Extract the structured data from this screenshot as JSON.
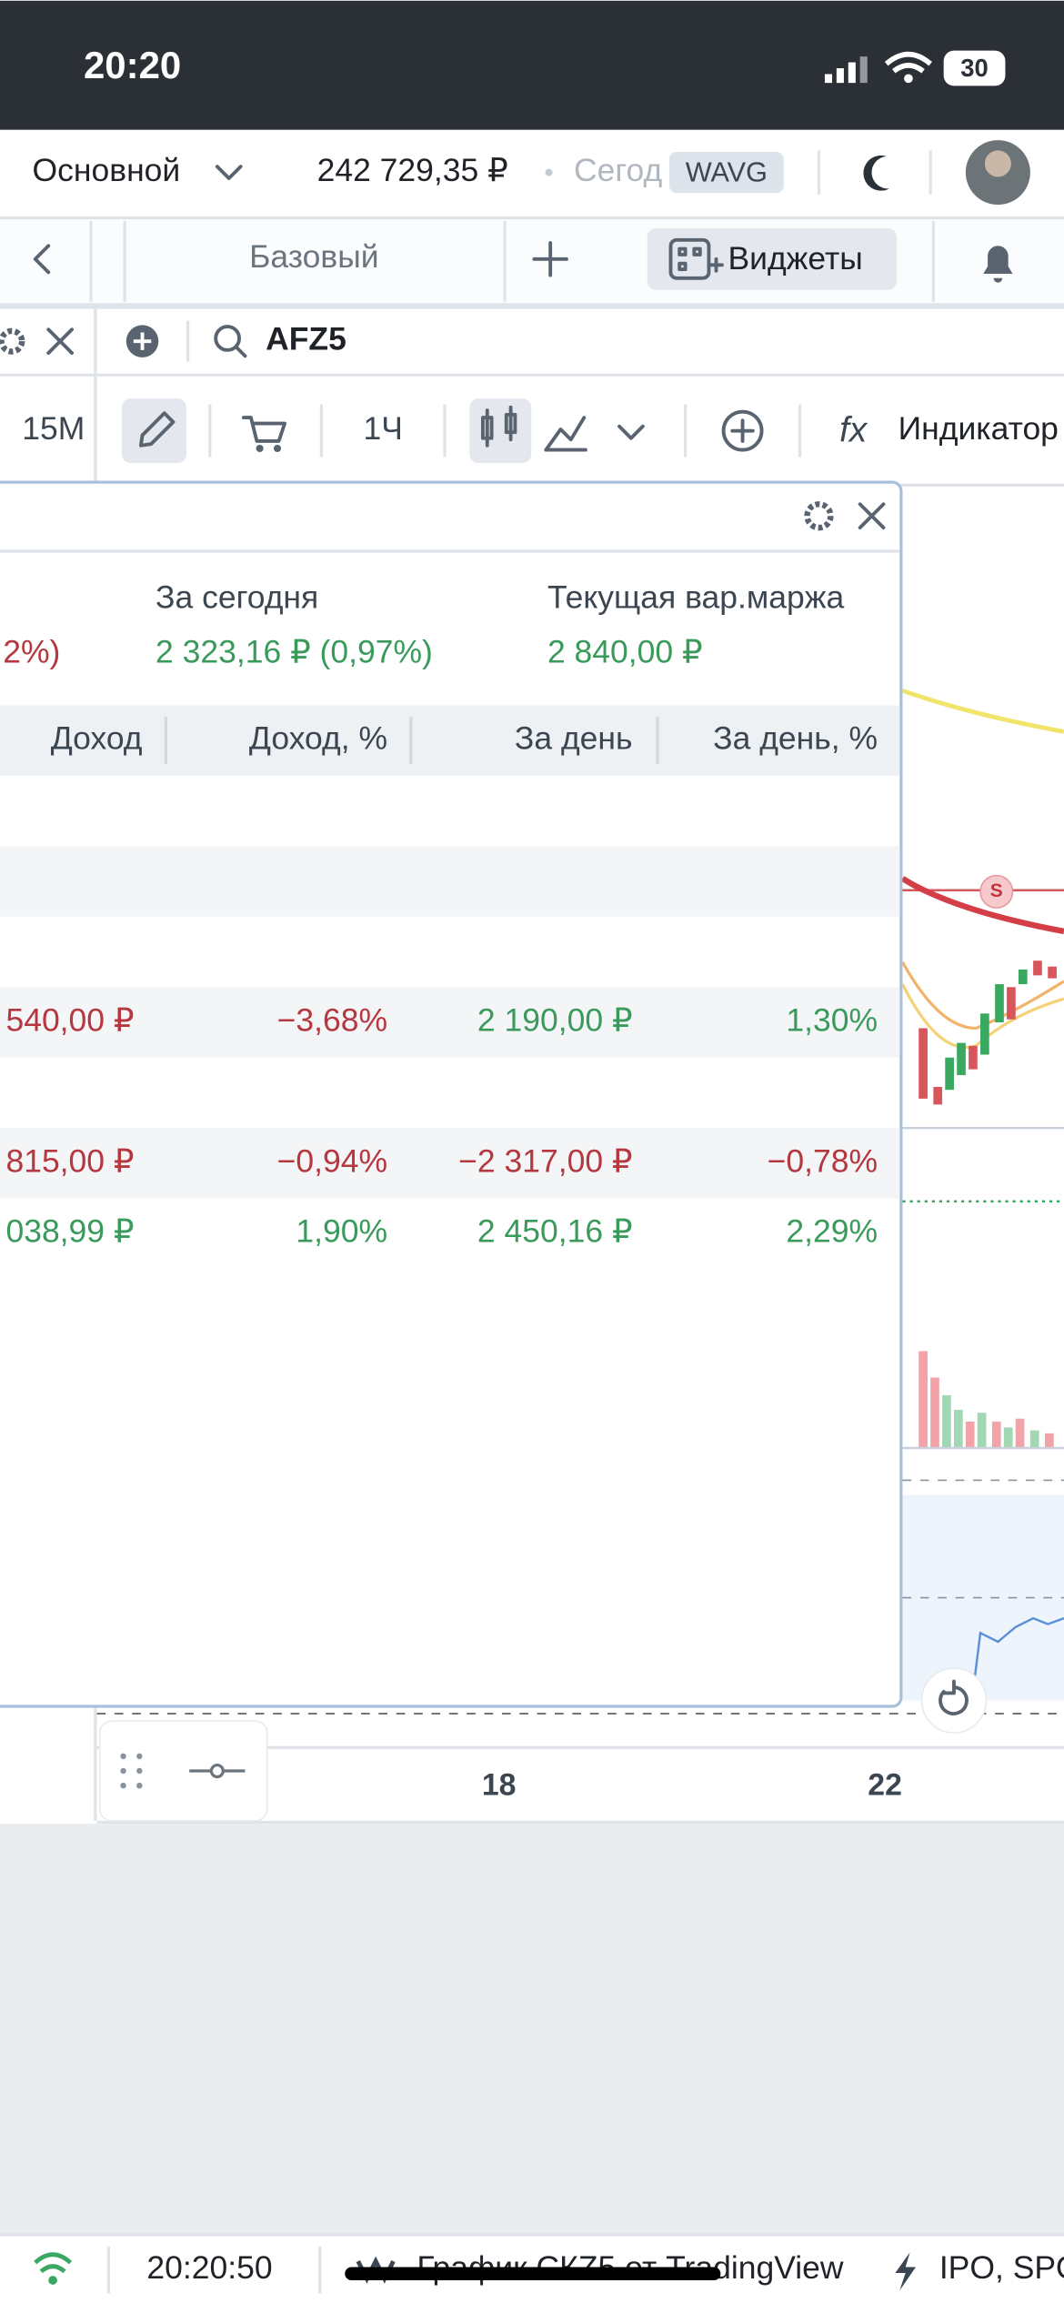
{
  "status_bar": {
    "time": "20:20",
    "battery": "30"
  },
  "header": {
    "account": "Основной",
    "balance": "242 729,35 ₽",
    "today_truncated": "Сегод",
    "badge": "WAVG"
  },
  "tabs": {
    "layout": "Базовый",
    "widgets": "Виджеты"
  },
  "left_panel": {
    "interval": "15М"
  },
  "chart_toolbar": {
    "ticker": "AFZ5",
    "interval": "1Ч",
    "indicators": "Индикатор"
  },
  "portfolio_widget": {
    "summary": {
      "left_value": "2%)",
      "today_label": "За сегодня",
      "today_value": "2 323,16 ₽ (0,97%)",
      "margin_label": "Текущая вар.маржа",
      "margin_value": "2 840,00 ₽"
    },
    "table": {
      "columns": [
        "Доход",
        "Доход, %",
        "За день",
        "За день, %"
      ],
      "rows": [
        [
          "540,00 ₽",
          "−3,68%",
          "2 190,00 ₽",
          "1,30%"
        ],
        [
          "815,00 ₽",
          "−0,94%",
          "−2 317,00 ₽",
          "−0,78%"
        ],
        [
          "038,99 ₽",
          "1,90%",
          "2 450,16 ₽",
          "2,29%"
        ]
      ]
    }
  },
  "chart_axis": {
    "x_labels": [
      "18",
      "22"
    ]
  },
  "footer": {
    "time": "20:20:50",
    "news": "График СКZ5 от TradingView",
    "ticker": "IPO, SPO"
  }
}
